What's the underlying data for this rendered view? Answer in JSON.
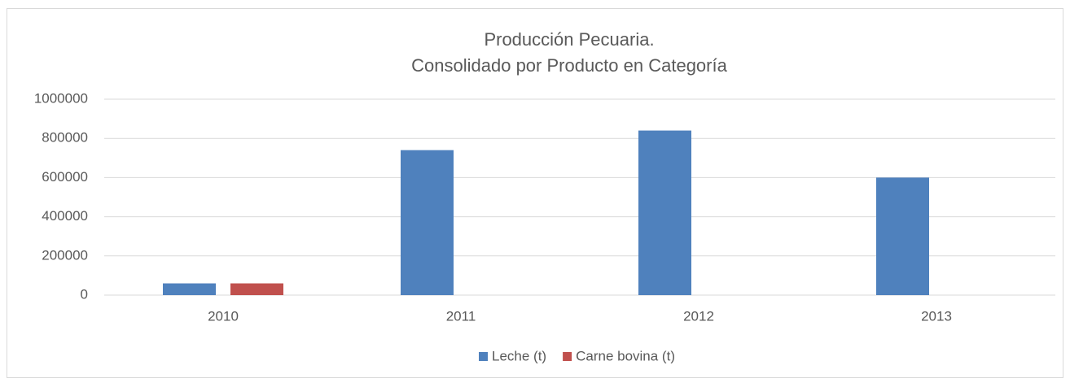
{
  "chart_data": {
    "type": "bar",
    "title": [
      "Producción Pecuaria.",
      "Consolidado por Producto en Categoría"
    ],
    "categories": [
      "2010",
      "2011",
      "2012",
      "2013"
    ],
    "series": [
      {
        "name": "Leche (t)",
        "color": "#4f81bd",
        "values": [
          60000,
          740000,
          840000,
          600000
        ]
      },
      {
        "name": "Carne bovina (t)",
        "color": "#c0504d",
        "values": [
          60000,
          0,
          0,
          0
        ]
      }
    ],
    "ylim": [
      0,
      1000000
    ],
    "yticks": [
      0,
      200000,
      400000,
      600000,
      800000,
      1000000
    ],
    "grid": true,
    "legend": "bottom"
  }
}
